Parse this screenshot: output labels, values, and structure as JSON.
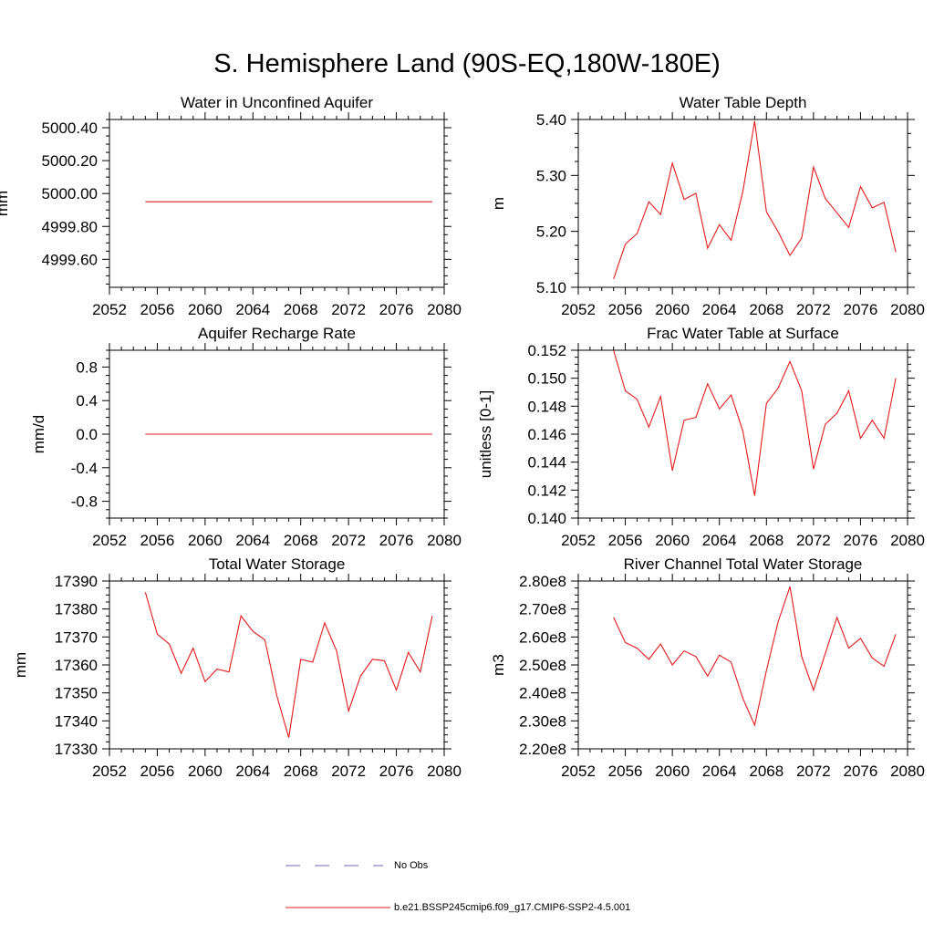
{
  "figure": {
    "title": "S. Hemisphere Land (90S-EQ,180W-180E)"
  },
  "legend": {
    "items": [
      {
        "label": "No Obs",
        "color": "#6b6bb8",
        "dash": true
      },
      {
        "label": "b.e21.BSSP245cmip6.f09_g17.CMIP6-SSP2-4.5.001",
        "color": "#e41a1c",
        "dash": false
      }
    ]
  },
  "chart_data": [
    {
      "type": "line",
      "title": "Water in Unconfined Aquifer",
      "ylabel": "mm",
      "xlim": [
        2052,
        2080
      ],
      "xticks": [
        2052,
        2056,
        2060,
        2064,
        2068,
        2072,
        2076,
        2080
      ],
      "ylim": [
        4999.43,
        5000.45
      ],
      "yticks": [
        4999.6,
        4999.8,
        5000.0,
        5000.2,
        5000.4
      ],
      "ytick_labels": [
        "4999.60",
        "4999.80",
        "5000.00",
        "5000.20",
        "5000.40"
      ],
      "series": [
        {
          "color": "#e41a1c",
          "x": [
            2055,
            2079
          ],
          "y": [
            4999.95,
            4999.95
          ]
        }
      ]
    },
    {
      "type": "line",
      "title": "Water Table Depth",
      "ylabel": "m",
      "xlim": [
        2052,
        2080
      ],
      "xticks": [
        2052,
        2056,
        2060,
        2064,
        2068,
        2072,
        2076,
        2080
      ],
      "ylim": [
        5.1,
        5.4
      ],
      "yticks": [
        5.1,
        5.2,
        5.3,
        5.4
      ],
      "ytick_labels": [
        "5.10",
        "5.20",
        "5.30",
        "5.40"
      ],
      "series": [
        {
          "color": "#e41a1c",
          "x": [
            2055,
            2056,
            2057,
            2058,
            2059,
            2060,
            2061,
            2062,
            2063,
            2064,
            2065,
            2066,
            2067,
            2068,
            2069,
            2070,
            2071,
            2072,
            2073,
            2074,
            2075,
            2076,
            2077,
            2078,
            2079
          ],
          "y": [
            5.115,
            5.177,
            5.196,
            5.253,
            5.23,
            5.322,
            5.257,
            5.268,
            5.17,
            5.212,
            5.184,
            5.272,
            5.397,
            5.235,
            5.199,
            5.157,
            5.188,
            5.315,
            5.259,
            5.233,
            5.207,
            5.28,
            5.242,
            5.252,
            5.163
          ]
        }
      ]
    },
    {
      "type": "line",
      "title": "Aquifer Recharge Rate",
      "ylabel": "mm/d",
      "xlim": [
        2052,
        2080
      ],
      "xticks": [
        2052,
        2056,
        2060,
        2064,
        2068,
        2072,
        2076,
        2080
      ],
      "ylim": [
        -1.0,
        1.0
      ],
      "yticks": [
        -0.8,
        -0.4,
        0.0,
        0.4,
        0.8
      ],
      "ytick_labels": [
        "-0.8",
        "-0.4",
        "0.0",
        "0.4",
        "0.8"
      ],
      "series": [
        {
          "color": "#e41a1c",
          "x": [
            2055,
            2079
          ],
          "y": [
            0.0,
            0.0
          ]
        }
      ]
    },
    {
      "type": "line",
      "title": "Frac Water Table at Surface",
      "ylabel": "unitless [0-1]",
      "xlim": [
        2052,
        2080
      ],
      "xticks": [
        2052,
        2056,
        2060,
        2064,
        2068,
        2072,
        2076,
        2080
      ],
      "ylim": [
        0.14,
        0.152
      ],
      "yticks": [
        0.14,
        0.142,
        0.144,
        0.146,
        0.148,
        0.15,
        0.152
      ],
      "ytick_labels": [
        "0.140",
        "0.142",
        "0.144",
        "0.146",
        "0.148",
        "0.150",
        "0.152"
      ],
      "series": [
        {
          "color": "#e41a1c",
          "x": [
            2055,
            2056,
            2057,
            2058,
            2059,
            2060,
            2061,
            2062,
            2063,
            2064,
            2065,
            2066,
            2067,
            2068,
            2069,
            2070,
            2071,
            2072,
            2073,
            2074,
            2075,
            2076,
            2077,
            2078,
            2079
          ],
          "y": [
            0.152,
            0.1491,
            0.1485,
            0.1465,
            0.1487,
            0.1434,
            0.147,
            0.1472,
            0.1496,
            0.1478,
            0.1488,
            0.1462,
            0.1416,
            0.1482,
            0.1493,
            0.1512,
            0.1491,
            0.1435,
            0.1467,
            0.1475,
            0.1491,
            0.1457,
            0.147,
            0.1457,
            0.15
          ]
        }
      ]
    },
    {
      "type": "line",
      "title": "Total Water Storage",
      "ylabel": "mm",
      "xlim": [
        2052,
        2080
      ],
      "xticks": [
        2052,
        2056,
        2060,
        2064,
        2068,
        2072,
        2076,
        2080
      ],
      "ylim": [
        17330,
        17390
      ],
      "yticks": [
        17330,
        17340,
        17350,
        17360,
        17370,
        17380,
        17390
      ],
      "ytick_labels": [
        "17330",
        "17340",
        "17350",
        "17360",
        "17370",
        "17380",
        "17390"
      ],
      "series": [
        {
          "color": "#e41a1c",
          "x": [
            2055,
            2056,
            2057,
            2058,
            2059,
            2060,
            2061,
            2062,
            2063,
            2064,
            2065,
            2066,
            2067,
            2068,
            2069,
            2070,
            2071,
            2072,
            2073,
            2074,
            2075,
            2076,
            2077,
            2078,
            2079
          ],
          "y": [
            17386,
            17371,
            17367.5,
            17357,
            17366,
            17354,
            17358.5,
            17357.5,
            17377.5,
            17372,
            17369,
            17349,
            17334,
            17362,
            17361,
            17375,
            17365,
            17343.5,
            17356,
            17362,
            17361.5,
            17351,
            17364.5,
            17357.5,
            17377.5
          ]
        }
      ]
    },
    {
      "type": "line",
      "title": "River Channel Total Water Storage",
      "ylabel": "m3",
      "xlim": [
        2052,
        2080
      ],
      "xticks": [
        2052,
        2056,
        2060,
        2064,
        2068,
        2072,
        2076,
        2080
      ],
      "ylim": [
        220000000,
        280000000
      ],
      "yticks": [
        220000000,
        230000000,
        240000000,
        250000000,
        260000000,
        270000000,
        280000000
      ],
      "ytick_labels": [
        "2.20e8",
        "2.30e8",
        "2.40e8",
        "2.50e8",
        "2.60e8",
        "2.70e8",
        "2.80e8"
      ],
      "series": [
        {
          "color": "#e41a1c",
          "x": [
            2055,
            2056,
            2057,
            2058,
            2059,
            2060,
            2061,
            2062,
            2063,
            2064,
            2065,
            2066,
            2067,
            2068,
            2069,
            2070,
            2071,
            2072,
            2073,
            2074,
            2075,
            2076,
            2077,
            2078,
            2079
          ],
          "y": [
            267000000,
            258000000,
            256000000,
            252000000,
            257500000,
            250000000,
            255000000,
            253000000,
            246000000,
            253500000,
            251000000,
            238000000,
            228500000,
            248000000,
            265500000,
            278000000,
            253000000,
            241000000,
            254000000,
            267000000,
            256000000,
            259500000,
            252500000,
            249500000,
            261000000
          ]
        }
      ]
    }
  ]
}
